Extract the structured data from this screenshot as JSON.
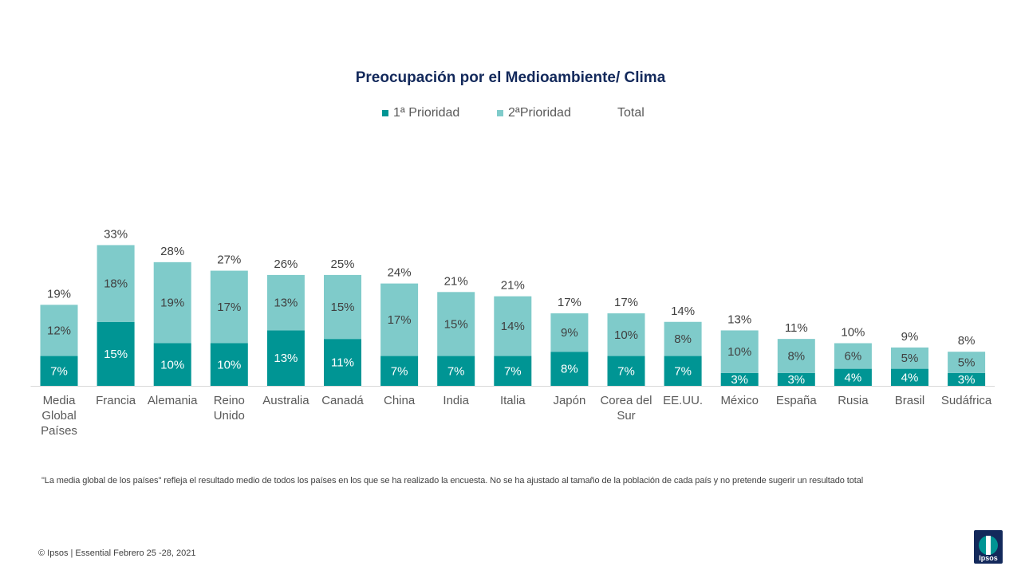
{
  "chart_data": {
    "type": "bar",
    "stacked": true,
    "title": "Preocupación por el Medioambiente/ Clima",
    "legend": [
      {
        "name": "1ª Prioridad",
        "color": "#009594"
      },
      {
        "name": "2ªPrioridad",
        "color": "#7fcbca"
      },
      {
        "name": "Total",
        "color": ""
      }
    ],
    "categories": [
      [
        "Media",
        "Global",
        "Países"
      ],
      [
        "Francia"
      ],
      [
        "Alemania"
      ],
      [
        "Reino",
        "Unido"
      ],
      [
        "Australia"
      ],
      [
        "Canadá"
      ],
      [
        "China"
      ],
      [
        "India"
      ],
      [
        "Italia"
      ],
      [
        "Japón"
      ],
      [
        "Corea del",
        "Sur"
      ],
      [
        "EE.UU."
      ],
      [
        "México"
      ],
      [
        "España"
      ],
      [
        "Rusia"
      ],
      [
        "Brasil"
      ],
      [
        "Sudáfrica"
      ]
    ],
    "series": [
      {
        "name": "1ª Prioridad",
        "values": [
          7,
          15,
          10,
          10,
          13,
          11,
          7,
          7,
          7,
          8,
          7,
          7,
          3,
          3,
          4,
          4,
          3
        ]
      },
      {
        "name": "2ªPrioridad",
        "values": [
          12,
          18,
          19,
          17,
          13,
          15,
          17,
          15,
          14,
          9,
          10,
          8,
          10,
          8,
          6,
          5,
          5
        ]
      },
      {
        "name": "Total",
        "values": [
          19,
          33,
          28,
          27,
          26,
          25,
          24,
          21,
          21,
          17,
          17,
          14,
          13,
          11,
          10,
          9,
          8
        ]
      }
    ],
    "value_suffix": "%",
    "ylim": [
      0,
      33
    ],
    "grid": false,
    "legend_position": "top"
  },
  "footnote": "\"La media global de los países\" refleja el resultado medio de todos los países en los que se ha realizado la encuesta. No se ha ajustado al tamaño de la población de cada país y no pretende sugerir un resultado total",
  "footer": "© Ipsos  |  Essential Febrero 25 -28, 2021",
  "logo_text": "Ipsos"
}
